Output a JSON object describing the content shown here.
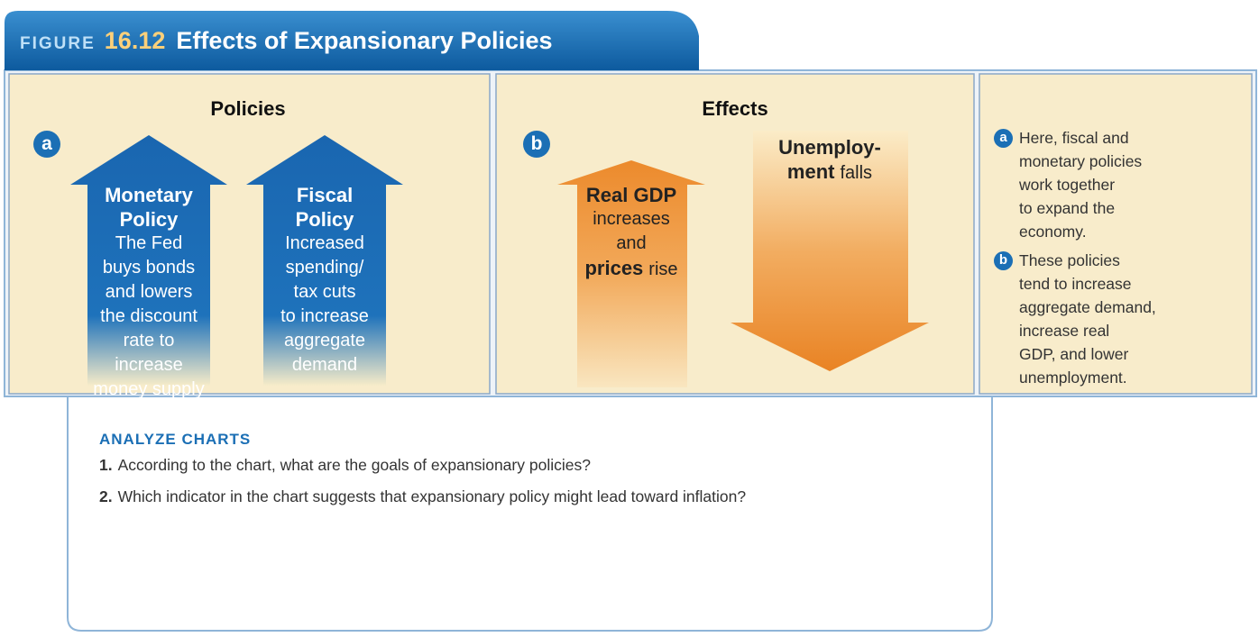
{
  "figure": {
    "label": "FIGURE",
    "number": "16.12",
    "title": "Effects of Expansionary Policies"
  },
  "policies": {
    "heading": "Policies",
    "marker": "a",
    "arrows": [
      {
        "title_lines": [
          "Monetary",
          "Policy"
        ],
        "lines": [
          "The Fed",
          "buys bonds",
          "and lowers",
          "the discount",
          "rate to",
          "increase",
          "money supply"
        ]
      },
      {
        "title_lines": [
          "Fiscal",
          "Policy"
        ],
        "lines": [
          "Increased",
          "spending/",
          "tax cuts",
          "to increase",
          "aggregate",
          "demand"
        ]
      }
    ]
  },
  "effects": {
    "heading": "Effects",
    "marker": "b",
    "arrows": [
      {
        "direction": "up",
        "lines": [
          [
            {
              "text": "Real GDP",
              "bold": true
            }
          ],
          [
            {
              "text": "increases",
              "bold": false
            }
          ],
          [
            {
              "text": "and",
              "bold": false
            }
          ],
          [
            {
              "text": "prices",
              "bold": true
            },
            {
              "text": "rise",
              "bold": false
            }
          ]
        ]
      },
      {
        "direction": "down",
        "lines": [
          [
            {
              "text": "Unemploy-",
              "bold": true
            }
          ],
          [
            {
              "text": "ment",
              "bold": true
            },
            {
              "text": "falls",
              "bold": false
            }
          ]
        ]
      }
    ]
  },
  "notes": [
    {
      "marker": "a",
      "lines": [
        "Here, fiscal and",
        "monetary policies",
        "work together",
        "to expand the",
        "economy."
      ]
    },
    {
      "marker": "b",
      "lines": [
        "These policies",
        "tend to increase",
        "aggregate demand,",
        "increase real",
        "GDP, and lower",
        "unemployment."
      ]
    }
  ],
  "analyze": {
    "heading": "ANALYZE CHARTS",
    "questions": [
      {
        "number": "1.",
        "text": "According to the chart, what are the goals of expansionary policies?"
      },
      {
        "number": "2.",
        "text": "Which indicator in the chart suggests that expansionary policy might lead toward inflation?"
      }
    ]
  }
}
